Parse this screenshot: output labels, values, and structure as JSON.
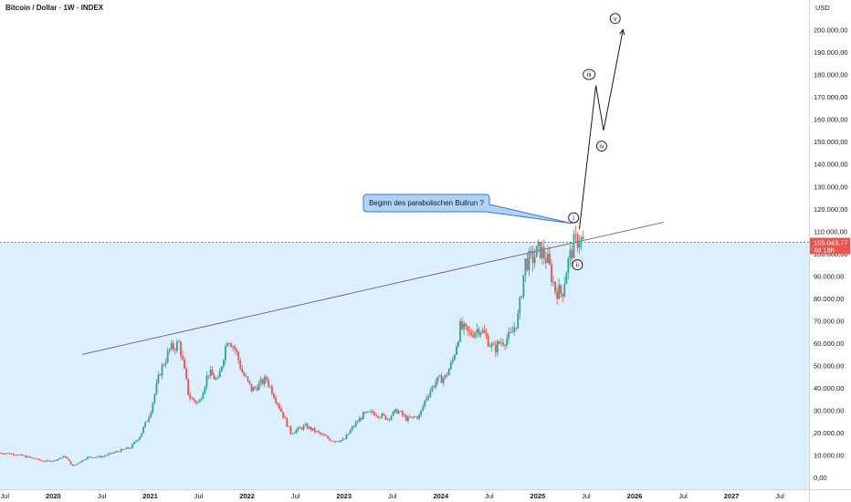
{
  "header": {
    "title": "Bitcoin / Dollar · 1W · INDEX"
  },
  "currency_label": "USD",
  "colors": {
    "up": "#26a69a",
    "down": "#ef5350",
    "price_line": "#ef5350",
    "background_lower": "#ddeefc",
    "callout_fill": "#aed3f7",
    "callout_stroke": "#3d78c4",
    "trendline": "#555555"
  },
  "current_price": {
    "value": "105.043,77",
    "countdown": "4d 18h"
  },
  "callout": {
    "text": "Beginn des parabolischen Bullrun ?"
  },
  "chart_data": {
    "type": "candlestick",
    "title": "Bitcoin / Dollar · 1W · INDEX",
    "x_ticks": [
      "Jul",
      "2020",
      "Jul",
      "2021",
      "Jul",
      "2022",
      "Jul",
      "2023",
      "Jul",
      "2024",
      "Jul",
      "2025",
      "Jul",
      "2026",
      "Jul",
      "2027",
      "Jul"
    ],
    "x_tick_dates": [
      2019.5,
      2020.0,
      2020.5,
      2021.0,
      2021.5,
      2022.0,
      2022.5,
      2023.0,
      2023.5,
      2024.0,
      2024.5,
      2025.0,
      2025.5,
      2026.0,
      2026.5,
      2027.0,
      2027.5
    ],
    "xlim": [
      2019.45,
      2027.8
    ],
    "y_ticks": [
      "0,00",
      "10.000,00",
      "20.000,00",
      "30.000,00",
      "40.000,00",
      "50.000,00",
      "60.000,00",
      "70.000,00",
      "80.000,00",
      "90.000,00",
      "100.000,00",
      "110.000,00",
      "120.000,00",
      "130.000,00",
      "140.000,00",
      "150.000,00",
      "160.000,00",
      "170.000,00",
      "180.000,00",
      "190.000,00",
      "200.000,00"
    ],
    "y_tick_values": [
      0,
      10000,
      20000,
      30000,
      40000,
      50000,
      60000,
      70000,
      80000,
      90000,
      100000,
      110000,
      120000,
      130000,
      140000,
      150000,
      160000,
      170000,
      180000,
      190000,
      200000
    ],
    "ylim": [
      -4000,
      210000
    ],
    "price_path": [
      [
        2019.45,
        11000
      ],
      [
        2019.6,
        10500
      ],
      [
        2019.75,
        9000
      ],
      [
        2019.9,
        7300
      ],
      [
        2020.0,
        7500
      ],
      [
        2020.12,
        9500
      ],
      [
        2020.2,
        5000
      ],
      [
        2020.35,
        9000
      ],
      [
        2020.5,
        9300
      ],
      [
        2020.65,
        11500
      ],
      [
        2020.8,
        13500
      ],
      [
        2020.9,
        19000
      ],
      [
        2021.0,
        29000
      ],
      [
        2021.1,
        47000
      ],
      [
        2021.2,
        57000
      ],
      [
        2021.3,
        60000
      ],
      [
        2021.4,
        36000
      ],
      [
        2021.5,
        33000
      ],
      [
        2021.6,
        47000
      ],
      [
        2021.7,
        43000
      ],
      [
        2021.8,
        63000
      ],
      [
        2021.88,
        57000
      ],
      [
        2021.95,
        47000
      ],
      [
        2022.05,
        39000
      ],
      [
        2022.2,
        44000
      ],
      [
        2022.35,
        30000
      ],
      [
        2022.45,
        20000
      ],
      [
        2022.6,
        23000
      ],
      [
        2022.75,
        19500
      ],
      [
        2022.88,
        16500
      ],
      [
        2023.0,
        16800
      ],
      [
        2023.1,
        23000
      ],
      [
        2023.2,
        28000
      ],
      [
        2023.3,
        29000
      ],
      [
        2023.45,
        26500
      ],
      [
        2023.55,
        30000
      ],
      [
        2023.65,
        26000
      ],
      [
        2023.78,
        27500
      ],
      [
        2023.85,
        36000
      ],
      [
        2023.95,
        43000
      ],
      [
        2024.05,
        45000
      ],
      [
        2024.12,
        52000
      ],
      [
        2024.2,
        67000
      ],
      [
        2024.3,
        64000
      ],
      [
        2024.4,
        67000
      ],
      [
        2024.55,
        57000
      ],
      [
        2024.6,
        60000
      ],
      [
        2024.72,
        63000
      ],
      [
        2024.8,
        72000
      ],
      [
        2024.87,
        96000
      ],
      [
        2024.95,
        98000
      ],
      [
        2025.02,
        102000
      ],
      [
        2025.1,
        97000
      ],
      [
        2025.18,
        84000
      ],
      [
        2025.25,
        82000
      ],
      [
        2025.3,
        94000
      ],
      [
        2025.37,
        104000
      ],
      [
        2025.43,
        107000
      ],
      [
        2025.47,
        105043
      ]
    ],
    "annotations": {
      "trendline": [
        [
          2020.3,
          55000
        ],
        [
          2026.3,
          114000
        ]
      ],
      "projection": [
        [
          2025.43,
          111000
        ],
        [
          2025.6,
          175000
        ],
        [
          2025.68,
          155000
        ],
        [
          2025.88,
          200000
        ]
      ],
      "wave_labels": [
        {
          "label": "i",
          "x": 2025.37,
          "y": 116000
        },
        {
          "label": "ii",
          "x": 2025.41,
          "y": 95000
        },
        {
          "label": "iii",
          "x": 2025.53,
          "y": 180000
        },
        {
          "label": "iv",
          "x": 2025.66,
          "y": 148000
        },
        {
          "label": "v",
          "x": 2025.8,
          "y": 205000
        }
      ]
    }
  }
}
